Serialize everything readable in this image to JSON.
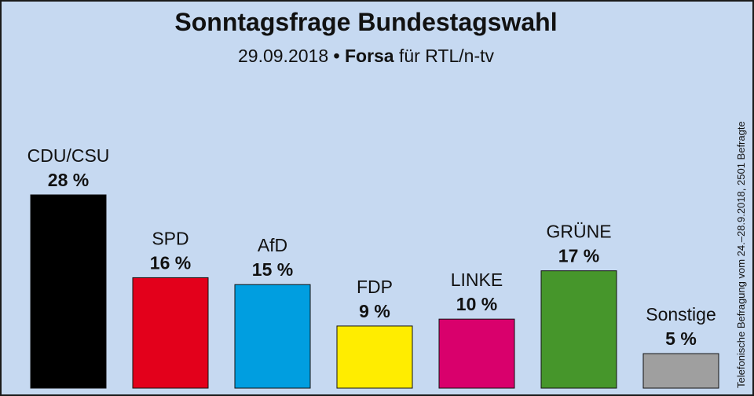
{
  "header": {
    "title": "Sonntagsfrage Bundestagswahl",
    "subtitle_date": "29.09.2018",
    "subtitle_bullet": "•",
    "subtitle_institute": "Forsa",
    "subtitle_client": "für RTL/n-tv"
  },
  "side_note": "Telefonische Befragung vom 24.–28.9.2018, 2501 Befragte",
  "chart_data": {
    "type": "bar",
    "title": "Sonntagsfrage Bundestagswahl",
    "subtitle": "29.09.2018 • Forsa für RTL/n-tv",
    "categories": [
      "CDU/CSU",
      "SPD",
      "AfD",
      "FDP",
      "LINKE",
      "GRÜNE",
      "Sonstige"
    ],
    "values": [
      28,
      16,
      15,
      9,
      10,
      17,
      5
    ],
    "value_labels": [
      "28 %",
      "16 %",
      "15 %",
      "9 %",
      "10 %",
      "17 %",
      "5 %"
    ],
    "colors": [
      "#000000",
      "#e3001b",
      "#009ee0",
      "#ffed00",
      "#d9006c",
      "#46962b",
      "#9f9f9f"
    ],
    "ylim": [
      0,
      28
    ],
    "grid": false,
    "legend": "none"
  }
}
